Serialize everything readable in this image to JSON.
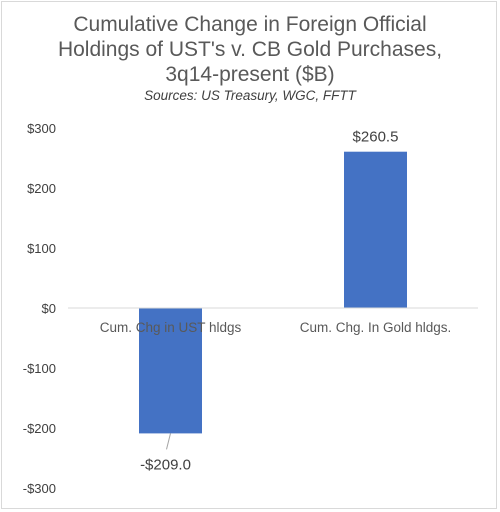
{
  "chart_data": {
    "type": "bar",
    "title_lines": [
      "Cumulative Change in Foreign Official",
      "Holdings of UST's v. CB Gold Purchases,",
      "3q14-present ($B)"
    ],
    "subtitle": "Sources:  US Treasury, WGC, FFTT",
    "categories": [
      "Cum. Chg in UST hldgs",
      "Cum. Chg. In Gold hldgs."
    ],
    "values": [
      -209.0,
      260.5
    ],
    "data_labels": [
      "-$209.0",
      "$260.5"
    ],
    "ylim": [
      -300,
      300
    ],
    "yticks": [
      300,
      200,
      100,
      0,
      -100,
      -200,
      -300
    ],
    "ytick_labels": [
      "$300",
      "$200",
      "$100",
      "$0",
      "-$100",
      "-$200",
      "-$300"
    ],
    "bar_color": "#4472c4",
    "grid": false,
    "legend": "none"
  }
}
